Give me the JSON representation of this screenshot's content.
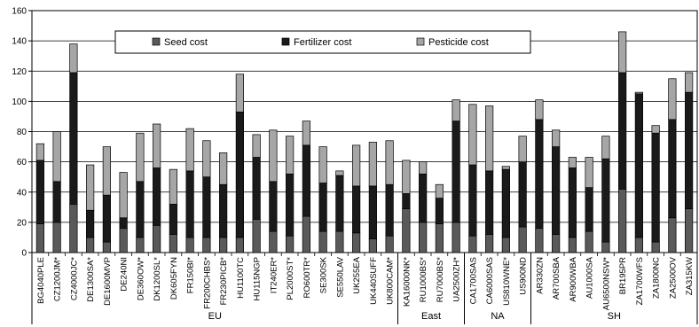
{
  "chart_data": {
    "type": "bar",
    "stacked": true,
    "title": "",
    "xlabel": "",
    "ylabel": "",
    "ylim": [
      0,
      160
    ],
    "yticks": [
      0,
      20,
      40,
      60,
      80,
      100,
      120,
      140,
      160
    ],
    "grid": true,
    "legend_position": "top-center",
    "categories": [
      "BG4040PLE",
      "CZ1200JM*",
      "CZ4000JC*",
      "DE1300SA*",
      "DE1600MVP",
      "DE240NI",
      "DE360OW*",
      "DK1200SL*",
      "DK605FYN",
      "FR150BI*",
      "FR200CHBS*",
      "FR230PICB*",
      "HU1100TC",
      "HU115NGP",
      "IT240ER*",
      "PL2000ST*",
      "RO600TR*",
      "SE300SK",
      "SE550LAV",
      "UK255EA",
      "UK440SUFF",
      "UK800CAM*",
      "KA16000NK*",
      "RU1000BS*",
      "RU7000BS*",
      "UA2500ZH*",
      "CA1700SAS",
      "CA6000SAS",
      "US810WNE*",
      "US900ND",
      "AR330ZN",
      "AR700SBA",
      "AR900WBA",
      "AU1000SA",
      "AU6500NSW*",
      "BR195PR",
      "ZA1700WFS",
      "ZA1800NC",
      "ZA2500OV",
      "ZA315KW"
    ],
    "groups": [
      {
        "label": "EU",
        "start": 0,
        "end": 21
      },
      {
        "label": "East",
        "start": 22,
        "end": 25
      },
      {
        "label": "NA",
        "start": 26,
        "end": 29
      },
      {
        "label": "SH",
        "start": 30,
        "end": 39
      }
    ],
    "series": [
      {
        "name": "Seed cost",
        "color": "#5a5a5a",
        "values": [
          19,
          20,
          32,
          10,
          7,
          16,
          10,
          18,
          12,
          10,
          10,
          10,
          10,
          22,
          14,
          11,
          24,
          14,
          14,
          13,
          9,
          11,
          29,
          20,
          19,
          20,
          11,
          12,
          10,
          17,
          16,
          12,
          10,
          14,
          7,
          42,
          10,
          7,
          23,
          29
        ]
      },
      {
        "name": "Fertilizer cost",
        "color": "#1a1a1a",
        "values": [
          42,
          27,
          87,
          18,
          31,
          7,
          37,
          38,
          20,
          44,
          40,
          35,
          83,
          41,
          33,
          41,
          47,
          32,
          37,
          31,
          35,
          34,
          10,
          32,
          17,
          67,
          47,
          42,
          45,
          43,
          72,
          58,
          46,
          29,
          55,
          77,
          95,
          72,
          65,
          77
        ]
      },
      {
        "name": "Pesticide cost",
        "color": "#a6a6a6",
        "values": [
          11,
          33,
          19,
          30,
          32,
          30,
          32,
          29,
          23,
          28,
          24,
          21,
          25,
          15,
          34,
          25,
          16,
          24,
          3,
          27,
          29,
          29,
          22,
          8,
          9,
          14,
          40,
          43,
          2,
          17,
          13,
          11,
          7,
          20,
          15,
          27,
          1,
          5,
          27,
          13
        ]
      }
    ]
  }
}
